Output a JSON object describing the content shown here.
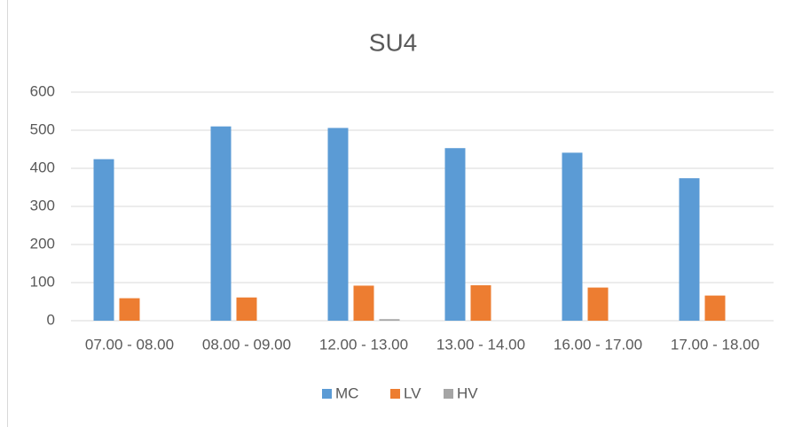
{
  "chart_data": {
    "type": "bar",
    "title": "SU4",
    "categories": [
      "07.00 - 08.00",
      "08.00 - 09.00",
      "12.00 - 13.00",
      "13.00 - 14.00",
      "16.00 - 17.00",
      "17.00 - 18.00"
    ],
    "series": [
      {
        "name": "MC",
        "color": "#5b9bd5",
        "values": [
          424,
          510,
          506,
          453,
          441,
          374
        ]
      },
      {
        "name": "LV",
        "color": "#ed7d31",
        "values": [
          59,
          61,
          92,
          93,
          87,
          66
        ]
      },
      {
        "name": "HV",
        "color": "#a5a5a5",
        "values": [
          0,
          0,
          4,
          0,
          0,
          0
        ]
      }
    ],
    "ylim": [
      0,
      600
    ],
    "yticks": [
      0,
      100,
      200,
      300,
      400,
      500,
      600
    ],
    "grid": true,
    "legend": "bottom"
  }
}
